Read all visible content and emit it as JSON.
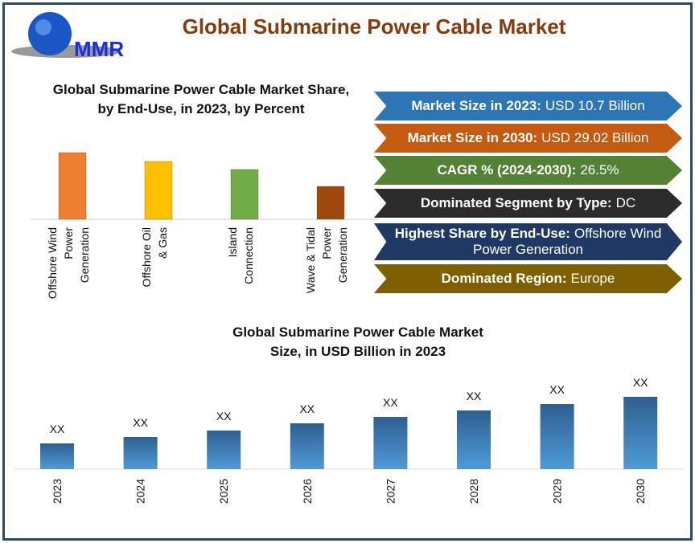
{
  "header": {
    "title": "Global Submarine Power Cable Market",
    "logo_text": "MMR"
  },
  "banners": [
    {
      "label": "Market Size in 2023:",
      "value": "USD 10.7 Billion",
      "color": "#2e75b6"
    },
    {
      "label": "Market Size in 2030:",
      "value": "USD 29.02 Billion",
      "color": "#c55a11"
    },
    {
      "label": "CAGR % (2024-2030):",
      "value": "26.5%",
      "color": "#548235"
    },
    {
      "label": "Dominated Segment by Type:",
      "value": "DC",
      "color": "#2b2b2b"
    },
    {
      "label": "Highest Share by End-Use:",
      "value": "Offshore Wind Power Generation",
      "color": "#1f3864"
    },
    {
      "label": "Dominated Region:",
      "value": "Europe",
      "color": "#7f6000"
    }
  ],
  "chart_data": [
    {
      "type": "bar",
      "title": "Global Submarine Power Cable Market Share, by End-Use, in 2023, by Percent",
      "categories": [
        "Offshore Wind Power Generation",
        "Offshore Oil & Gas",
        "Island Connection",
        "Wave & Tidal Power Generation"
      ],
      "values": [
        83,
        72,
        62,
        41
      ],
      "colors": [
        "#ed7d31",
        "#ffc000",
        "#70ad47",
        "#9e480e"
      ],
      "xlabel": "",
      "ylabel": "",
      "grid": false
    },
    {
      "type": "bar",
      "title": "Global Submarine Power Cable Market Size, in USD Billion in 2023",
      "categories": [
        "2023",
        "2024",
        "2025",
        "2026",
        "2027",
        "2028",
        "2029",
        "2030"
      ],
      "values": [
        32,
        40,
        48,
        57,
        65,
        73,
        81,
        90
      ],
      "data_labels": [
        "XX",
        "XX",
        "XX",
        "XX",
        "XX",
        "XX",
        "XX",
        "XX"
      ],
      "colors": [
        "#2e75b6"
      ],
      "xlabel": "",
      "ylabel": "",
      "grid": false
    }
  ]
}
